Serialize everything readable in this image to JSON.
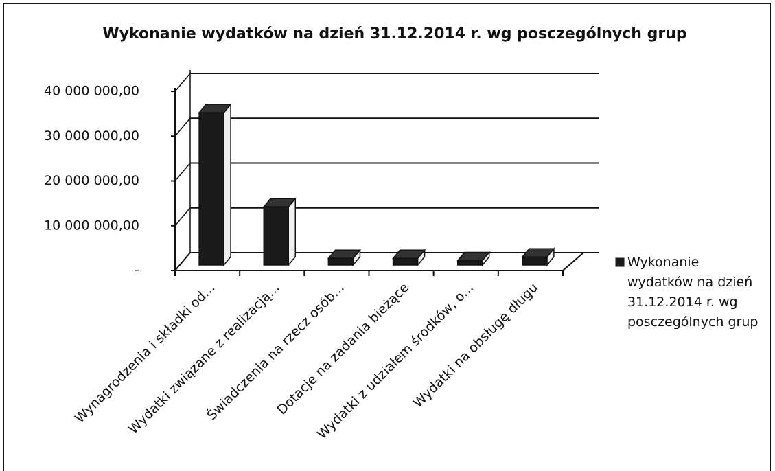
{
  "chart_data": {
    "type": "bar3d",
    "title": "Wykonanie wydatków  na dzień 31.12.2014 r. wg posczególnych grup",
    "categories": [
      "Wynagrodzenia i składki od...",
      "Wydatki związane z realizacją...",
      "Świadczenia na rzecz osób...",
      "Dotacje na zadania bieżące",
      "Wydatki z udziałem środków, o...",
      "Wydatki na obsługę długu"
    ],
    "series": [
      {
        "name": "Wykonanie wydatków  na dzień 31.12.2014 r. wg posczególnych grup",
        "color": "#1a1a1a",
        "values": [
          34000000,
          13000000,
          1500000,
          1500000,
          1000000,
          1800000
        ]
      }
    ],
    "ylim": [
      0,
      40000000
    ],
    "yticks": [
      {
        "value": 0,
        "label": "-"
      },
      {
        "value": 10000000,
        "label": "10 000 000,00"
      },
      {
        "value": 20000000,
        "label": "20 000 000,00"
      },
      {
        "value": 30000000,
        "label": "30 000 000,00"
      },
      {
        "value": 40000000,
        "label": "40 000 000,00"
      }
    ],
    "grid": true,
    "legend": "right"
  }
}
